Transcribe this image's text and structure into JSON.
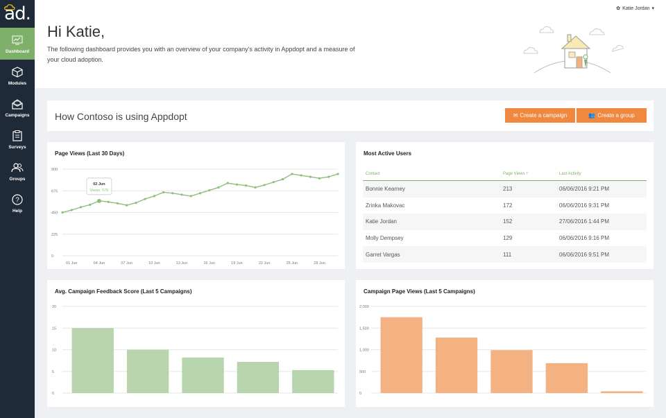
{
  "app": {
    "logo": "ad."
  },
  "sidebar": {
    "items": [
      {
        "label": "Dashboard",
        "icon": "dashboard-icon",
        "active": true
      },
      {
        "label": "Modules",
        "icon": "cube-icon"
      },
      {
        "label": "Campaigns",
        "icon": "envelope-icon"
      },
      {
        "label": "Surveys",
        "icon": "clipboard-icon"
      },
      {
        "label": "Groups",
        "icon": "users-icon"
      },
      {
        "label": "Help",
        "icon": "question-icon"
      }
    ]
  },
  "header": {
    "user": "Katie Jordan",
    "greeting": "Hi Katie,",
    "intro": "The following dashboard provides you with an overview of your company's activity in Appdopt and a measure of your cloud adoption."
  },
  "banner": {
    "title": "How Contoso is using Appdopt",
    "create_campaign": "Create a campaign",
    "create_group": "Create a group"
  },
  "colors": {
    "accent": "#f0883f",
    "green": "#7fb069",
    "bar_green": "#b7d4ad",
    "bar_orange": "#f4b282",
    "sidebar": "#1f2a38"
  },
  "page_views": {
    "title": "Page Views (Last 30 Days)",
    "tooltip_date": "02 Jun",
    "tooltip_value": "Views: 570"
  },
  "most_active": {
    "title": "Most Active Users",
    "columns": [
      "Contact",
      "Page Views",
      "Last Activity"
    ],
    "rows": [
      [
        "Bonnie Kearney",
        "213",
        "06/06/2016 9:21 PM"
      ],
      [
        "Zrinka Makovac",
        "172",
        "06/06/2016 9:31 PM"
      ],
      [
        "Katie Jordan",
        "152",
        "27/06/2016 1:44 PM"
      ],
      [
        "Molly Dempsey",
        "129",
        "06/06/2016 9:16 PM"
      ],
      [
        "Garret Vargas",
        "111",
        "06/06/2016 9:51 PM"
      ]
    ]
  },
  "chart_data": [
    {
      "type": "line",
      "title": "Page Views (Last 30 Days)",
      "x_ticks": [
        "01 Jun",
        "04 Jun",
        "07 Jun",
        "10 Jun",
        "13 Jun",
        "16 Jun",
        "19 Jun",
        "22 Jun",
        "25 Jun",
        "28 Jun"
      ],
      "y_ticks": [
        "900",
        "675",
        "450",
        "225",
        "0"
      ],
      "ylim": [
        0,
        900
      ],
      "x": [
        -1,
        0,
        1,
        2,
        3,
        4,
        5,
        6,
        7,
        8,
        9,
        10,
        11,
        12,
        13,
        14,
        15,
        16,
        17,
        18,
        19,
        20,
        21,
        22,
        23,
        24,
        25,
        26,
        27,
        28,
        29
      ],
      "values": [
        450,
        475,
        505,
        530,
        570,
        560,
        545,
        525,
        550,
        590,
        620,
        660,
        650,
        635,
        620,
        650,
        680,
        710,
        755,
        740,
        730,
        710,
        735,
        765,
        795,
        850,
        835,
        820,
        805,
        820,
        850
      ],
      "highlight_index": 4
    },
    {
      "type": "bar",
      "title": "Avg. Campaign Feedback Score (Last 5 Campaigns)",
      "y_ticks": [
        "20",
        "15",
        "10",
        "5",
        "0"
      ],
      "ylim": [
        0,
        20
      ],
      "values": [
        15,
        10,
        8.2,
        7.2,
        5.3
      ]
    },
    {
      "type": "bar",
      "title": "Campaign Page Views (Last 5 Campaigns)",
      "y_ticks": [
        "2,000",
        "1,500",
        "1,000",
        "500",
        "0"
      ],
      "ylim": [
        0,
        2000
      ],
      "values": [
        1750,
        1280,
        990,
        690,
        40
      ]
    }
  ]
}
